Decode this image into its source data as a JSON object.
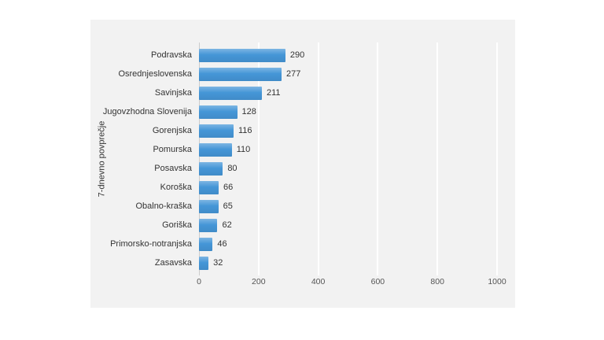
{
  "chart_data": {
    "type": "bar",
    "orientation": "horizontal",
    "title": "",
    "ylabel": "7-dnevno povprečje",
    "xlabel": "",
    "categories": [
      "Podravska",
      "Osrednjeslovenska",
      "Savinjska",
      "Jugovzhodna Slovenija",
      "Gorenjska",
      "Pomurska",
      "Posavska",
      "Koroška",
      "Obalno-kraška",
      "Goriška",
      "Primorsko-notranjska",
      "Zasavska"
    ],
    "values": [
      290,
      277,
      211,
      128,
      116,
      110,
      80,
      66,
      65,
      62,
      46,
      32
    ],
    "xlim": [
      0,
      1000
    ],
    "xticks": [
      0,
      200,
      400,
      600,
      800,
      1000
    ],
    "grid": true,
    "legend": "none",
    "colors": {
      "bar": "#4596d7",
      "panel_background": "#f2f2f2",
      "gridline": "#ffffff",
      "text": "#333333"
    }
  }
}
